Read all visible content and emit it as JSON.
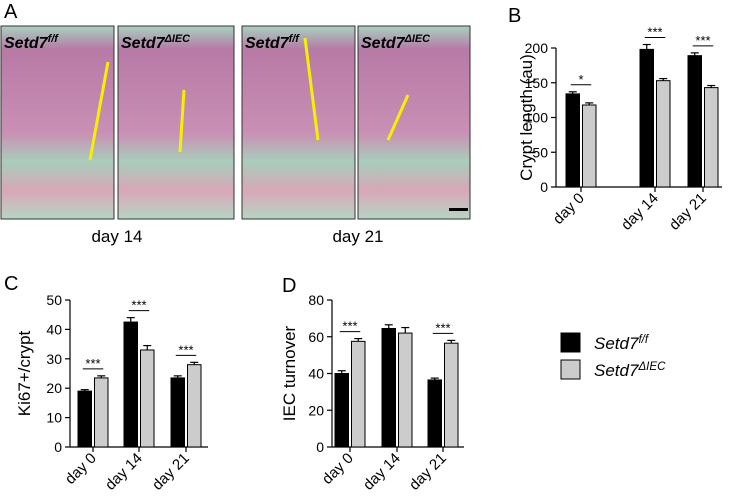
{
  "panel_a": {
    "label": "A",
    "images": [
      {
        "genotype": "Setd7",
        "superscript": "f/f"
      },
      {
        "genotype": "Setd7",
        "superscript": "ΔIEC"
      },
      {
        "genotype": "Setd7",
        "superscript": "f/f"
      },
      {
        "genotype": "Setd7",
        "superscript": "ΔIEC"
      }
    ],
    "days": [
      "day 14",
      "day 21"
    ]
  },
  "chart_data": [
    {
      "type": "bar",
      "label": "B",
      "y_label": "Crypt length (au)",
      "categories": [
        "day 0",
        "day 14",
        "day 21"
      ],
      "series": [
        {
          "name": "Setd7",
          "name_superscript": "f/f",
          "color": "#000000",
          "values": [
            134,
            198,
            189
          ],
          "errors": [
            3,
            7,
            4
          ]
        },
        {
          "name": "Setd7",
          "name_superscript": "ΔIEC",
          "color": "#cccccc",
          "values": [
            118,
            153,
            143
          ],
          "errors": [
            3,
            3,
            3
          ]
        }
      ],
      "significance": [
        "*",
        "***",
        "***"
      ],
      "ylim": [
        0,
        200
      ],
      "yticks": [
        0,
        50,
        100,
        150,
        200
      ]
    },
    {
      "type": "bar",
      "label": "C",
      "y_label": "Ki67+/crypt",
      "categories": [
        "day 0",
        "day 14",
        "day 21"
      ],
      "series": [
        {
          "name": "Setd7",
          "name_superscript": "f/f",
          "color": "#000000",
          "values": [
            19,
            42.5,
            23.5
          ],
          "errors": [
            0.5,
            1.5,
            0.7
          ]
        },
        {
          "name": "Setd7",
          "name_superscript": "ΔIEC",
          "color": "#cccccc",
          "values": [
            23.5,
            33,
            28
          ],
          "errors": [
            0.7,
            1.5,
            0.8
          ]
        }
      ],
      "significance": [
        "***",
        "***",
        "***"
      ],
      "ylim": [
        0,
        50
      ],
      "yticks": [
        0,
        10,
        20,
        30,
        40,
        50
      ]
    },
    {
      "type": "bar",
      "label": "D",
      "y_label": "IEC turnover",
      "categories": [
        "day 0",
        "day 14",
        "day 21"
      ],
      "series": [
        {
          "name": "Setd7",
          "name_superscript": "f/f",
          "color": "#000000",
          "values": [
            40,
            64.5,
            36.5
          ],
          "errors": [
            1.5,
            2,
            1
          ]
        },
        {
          "name": "Setd7",
          "name_superscript": "ΔIEC",
          "color": "#cccccc",
          "values": [
            57.5,
            62,
            56.5
          ],
          "errors": [
            1.5,
            3,
            1.5
          ]
        }
      ],
      "significance": [
        "***",
        null,
        "***"
      ],
      "ylim": [
        0,
        80
      ],
      "yticks": [
        0,
        20,
        40,
        60,
        80
      ],
      "legend": true
    }
  ]
}
